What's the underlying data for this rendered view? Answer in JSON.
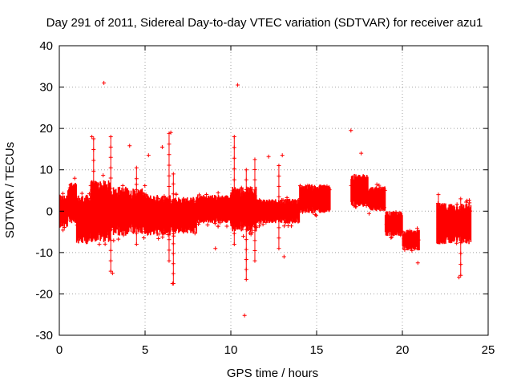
{
  "chart_data": {
    "type": "scatter",
    "title": "Day 291 of 2011, Sidereal Day-to-day VTEC variation (SDTVAR) for receiver azu1",
    "xlabel": "GPS time / hours",
    "ylabel": "SDTVAR / TECUs",
    "xlim": [
      0,
      25
    ],
    "ylim": [
      -30,
      40
    ],
    "xticks": [
      0,
      5,
      10,
      15,
      20,
      25
    ],
    "yticks": [
      -30,
      -20,
      -10,
      0,
      10,
      20,
      30,
      40
    ],
    "xtick_labels": [
      "0",
      "5",
      "10",
      "15",
      "20",
      "25"
    ],
    "ytick_labels": [
      "-30",
      "-20",
      "-10",
      "0",
      "10",
      "20",
      "30",
      "40"
    ],
    "grid": true,
    "marker": "+",
    "series_color": "#ff0000",
    "bands": [
      {
        "x_start": 0.0,
        "x_end": 0.5,
        "center": 0.0,
        "half_width": 4.0
      },
      {
        "x_start": 0.5,
        "x_end": 1.0,
        "center": 2.0,
        "half_width": 5.0
      },
      {
        "x_start": 1.0,
        "x_end": 1.8,
        "center": -2.0,
        "half_width": 6.0
      },
      {
        "x_start": 1.8,
        "x_end": 3.0,
        "center": 0.0,
        "half_width": 7.5
      },
      {
        "x_start": 3.0,
        "x_end": 4.0,
        "center": 0.0,
        "half_width": 6.0
      },
      {
        "x_start": 4.0,
        "x_end": 5.0,
        "center": 0.0,
        "half_width": 5.5
      },
      {
        "x_start": 5.0,
        "x_end": 6.5,
        "center": -1.0,
        "half_width": 5.0
      },
      {
        "x_start": 6.5,
        "x_end": 8.0,
        "center": -1.0,
        "half_width": 4.5
      },
      {
        "x_start": 8.0,
        "x_end": 10.0,
        "center": 0.5,
        "half_width": 3.5
      },
      {
        "x_start": 10.0,
        "x_end": 11.5,
        "center": 0.5,
        "half_width": 5.5
      },
      {
        "x_start": 11.5,
        "x_end": 13.0,
        "center": 0.0,
        "half_width": 3.0
      },
      {
        "x_start": 13.0,
        "x_end": 14.0,
        "center": 0.0,
        "half_width": 3.0
      },
      {
        "x_start": 14.0,
        "x_end": 15.8,
        "center": 3.0,
        "half_width": 3.5
      },
      {
        "x_start": 17.0,
        "x_end": 18.0,
        "center": 5.0,
        "half_width": 4.0
      },
      {
        "x_start": 18.0,
        "x_end": 19.0,
        "center": 3.0,
        "half_width": 3.0
      },
      {
        "x_start": 19.0,
        "x_end": 20.0,
        "center": -3.0,
        "half_width": 3.0
      },
      {
        "x_start": 20.0,
        "x_end": 21.0,
        "center": -7.0,
        "half_width": 2.5
      },
      {
        "x_start": 22.0,
        "x_end": 24.0,
        "center": -3.0,
        "half_width": 5.0
      }
    ],
    "outliers": [
      {
        "x": 2.6,
        "y": 31.0
      },
      {
        "x": 10.4,
        "y": 30.5
      },
      {
        "x": 17.0,
        "y": 19.5
      },
      {
        "x": 6.5,
        "y": 19.0
      },
      {
        "x": 1.9,
        "y": 18.0
      },
      {
        "x": 4.1,
        "y": 15.8
      },
      {
        "x": 6.0,
        "y": 15.5
      },
      {
        "x": 13.0,
        "y": 13.5
      },
      {
        "x": 5.2,
        "y": 13.5
      },
      {
        "x": 12.2,
        "y": 13.2
      },
      {
        "x": 17.6,
        "y": 14.0
      },
      {
        "x": 10.8,
        "y": -25.2
      },
      {
        "x": 6.6,
        "y": -17.5
      },
      {
        "x": 23.3,
        "y": -16.0
      },
      {
        "x": 3.1,
        "y": -15.0
      },
      {
        "x": 20.9,
        "y": -12.5
      },
      {
        "x": 13.1,
        "y": -11.0
      },
      {
        "x": 9.1,
        "y": -9.0
      }
    ],
    "spikes": [
      {
        "x": 2.0,
        "y_min": -6.0,
        "y_max": 17.5
      },
      {
        "x": 3.0,
        "y_min": -14.5,
        "y_max": 18.0
      },
      {
        "x": 4.5,
        "y_min": -8.0,
        "y_max": 10.5
      },
      {
        "x": 6.4,
        "y_min": -12.0,
        "y_max": 18.8
      },
      {
        "x": 6.65,
        "y_min": -17.5,
        "y_max": 9.0
      },
      {
        "x": 10.2,
        "y_min": -8.0,
        "y_max": 18.0
      },
      {
        "x": 10.9,
        "y_min": -16.5,
        "y_max": 10.0
      },
      {
        "x": 11.4,
        "y_min": -12.0,
        "y_max": 12.5
      },
      {
        "x": 12.8,
        "y_min": -9.0,
        "y_max": 11.0
      },
      {
        "x": 22.1,
        "y_min": -7.0,
        "y_max": 4.0
      },
      {
        "x": 23.4,
        "y_min": -15.5,
        "y_max": 3.0
      }
    ]
  }
}
